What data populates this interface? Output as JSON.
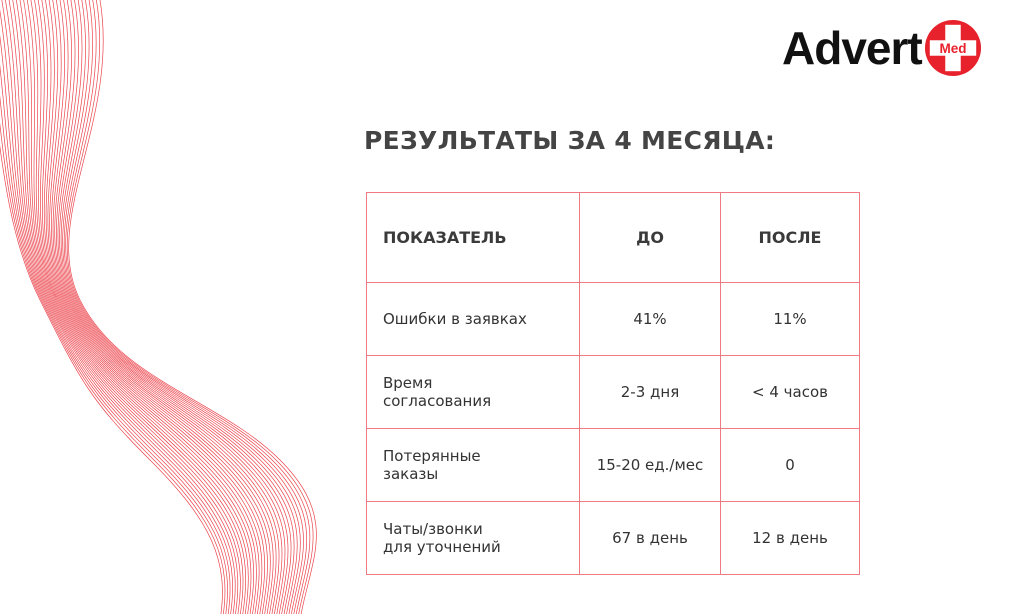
{
  "logo": {
    "text": "Advert",
    "badge": "Med",
    "accent": "#e8222c"
  },
  "title": "РЕЗУЛЬТАТЫ ЗА 4 МЕСЯЦА:",
  "table": {
    "headers": [
      "ПОКАЗАТЕЛЬ",
      "ДО",
      "ПОСЛЕ"
    ],
    "rows": [
      [
        "Ошибки в заявках",
        "41%",
        "11%"
      ],
      [
        "Время\nсогласования",
        "2-3 дня",
        "< 4 часов"
      ],
      [
        "Потерянные\nзаказы",
        "15-20 ед./мес",
        "0"
      ],
      [
        "Чаты/звонки\nдля уточнений",
        "67 в день",
        "12 в день"
      ]
    ]
  },
  "colors": {
    "lines": "#e8222c",
    "border": "#f07a84"
  }
}
